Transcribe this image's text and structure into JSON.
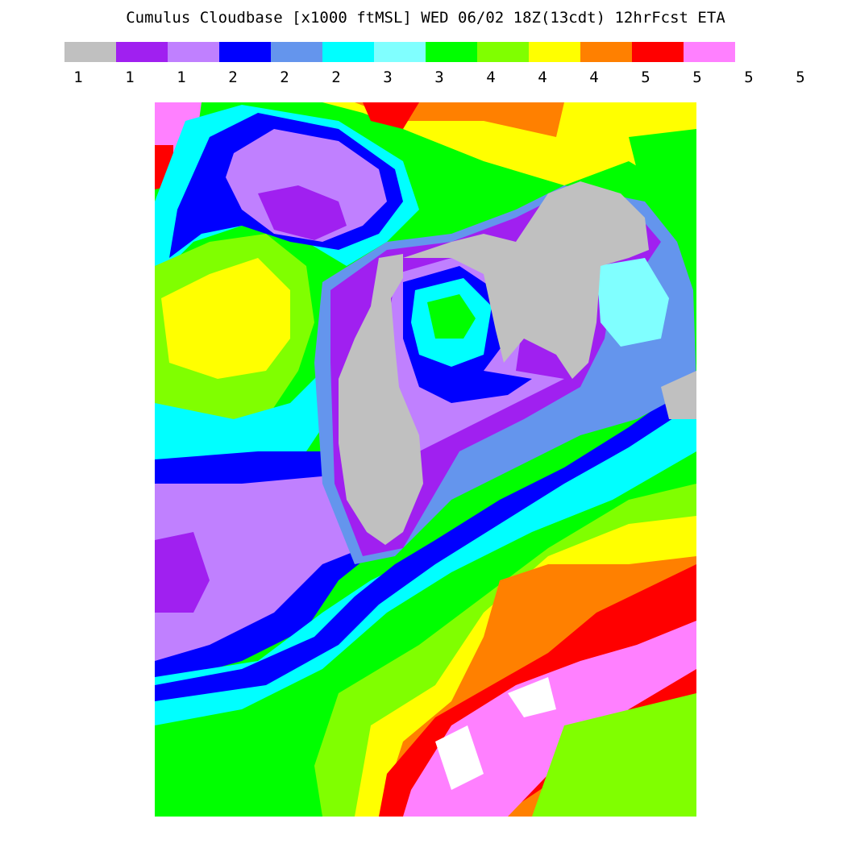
{
  "title": "Cumulus Cloudbase [x1000 ftMSL]  WED 06/02 18Z(13cdt) 12hrFcst ETA",
  "legend": {
    "colors": [
      "#c0c0c0",
      "#a020f0",
      "#c080ff",
      "#0000ff",
      "#6495ed",
      "#00ffff",
      "#80ffff",
      "#00ff00",
      "#80ff00",
      "#ffff00",
      "#ff8000",
      "#ff0000",
      "#ff80ff"
    ],
    "labels": [
      "1",
      "1",
      "1",
      "2",
      "2",
      "2",
      "3",
      "3",
      "4",
      "4",
      "4",
      "5",
      "5",
      "5",
      "5"
    ]
  }
}
